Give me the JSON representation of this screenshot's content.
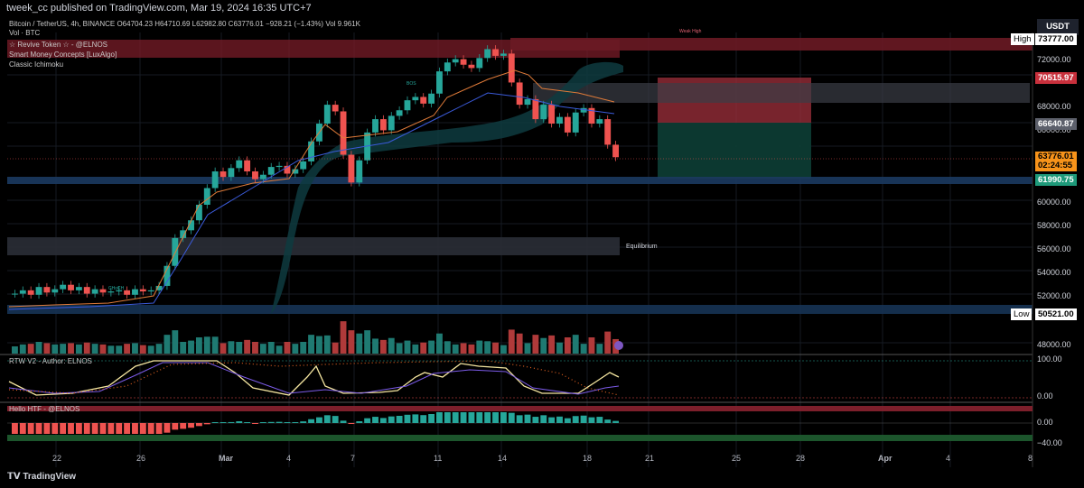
{
  "header": {
    "publisher_line": "tweek_cc published on TradingView.com, Mar 19, 2024 16:35 UTC+7"
  },
  "legend": {
    "symbol_line": "Bitcoin / TetherUS, 4h, BINANCE  O64704.23  H64710.69  L62982.80  C63776.01  −928.21 (−1.43%)  Vol 9.961K",
    "vol_label": "Vol · BTC",
    "indicators": [
      "☆ Revive Token ☆ - @ELNOS",
      "Smart Money Concepts [LuxAlgo]",
      "Classic Ichimoku"
    ]
  },
  "price_axis": {
    "currency": "USDT",
    "ticks": [
      "72000.00",
      "68000.00",
      "66000.00",
      "60000.00",
      "58000.00",
      "56000.00",
      "54000.00",
      "52000.00",
      "48000.00"
    ],
    "tags": {
      "high_label": "High",
      "high_value": "73777.00",
      "red_value": "70515.97",
      "gray_value": "66640.87",
      "last_value": "63776.01",
      "countdown": "02:24:55",
      "green_value": "61990.75",
      "low_label": "Low",
      "low_value": "50521.00"
    }
  },
  "annotations": {
    "equilibrium": "Equilibrium",
    "weak_high": "Weak High",
    "choch": "CHoCH",
    "bos": "BOS"
  },
  "osc1": {
    "title": "RTW V2 - Author: ELNOS",
    "tick_top": "100.00",
    "tick_bottom": "0.00"
  },
  "osc2": {
    "title": "Hello HTF - @ELNOS",
    "tick_mid": "0.00",
    "tick_bottom": "−40.00"
  },
  "time_axis": [
    "22",
    "26",
    "Mar",
    "4",
    "7",
    "11",
    "14",
    "18",
    "21",
    "25",
    "28",
    "Apr",
    "4",
    "8"
  ],
  "footer": {
    "brand": "TradingView"
  },
  "colors": {
    "up": "#26a69a",
    "down": "#ef5350",
    "bg": "#000000",
    "supply": "#8b2230",
    "demand": "#1b4f72"
  },
  "chart_data": {
    "type": "candlestick",
    "series": [
      {
        "name": "BTCUSDT 4h",
        "close": [
          51500,
          51800,
          51400,
          52100,
          51600,
          51900,
          52300,
          51800,
          52100,
          51500,
          51900,
          51600,
          51700,
          51800,
          51400,
          51900,
          51700,
          51800,
          52200,
          54000,
          56500,
          57200,
          58100,
          59500,
          61000,
          62500,
          62000,
          62800,
          63500,
          62500,
          61800,
          62200,
          62900,
          63000,
          62300,
          62700,
          63400,
          65200,
          66800,
          68500,
          67900,
          64000,
          61500,
          63500,
          66000,
          67200,
          66200,
          67500,
          68000,
          68900,
          69200,
          68600,
          69500,
          71500,
          72300,
          72600,
          72100,
          71800,
          72700,
          73500,
          72900,
          73100,
          70500,
          68500,
          69000,
          67200,
          68500,
          66800,
          67400,
          66000,
          67800,
          68200,
          66800,
          67200,
          64900,
          63776
        ]
      }
    ],
    "ylim": [
      47000,
      75000
    ]
  }
}
